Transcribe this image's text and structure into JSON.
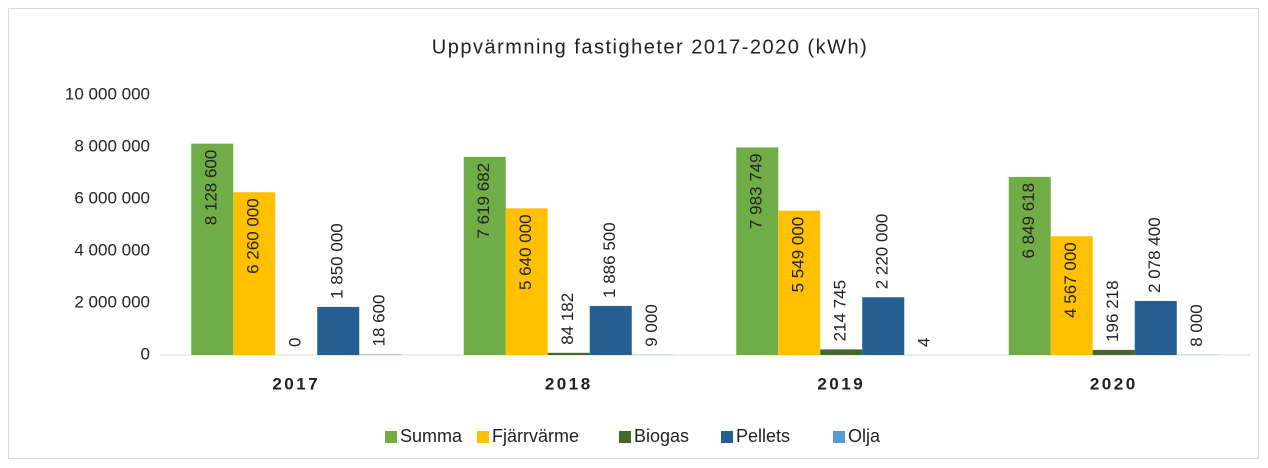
{
  "chart_data": {
    "type": "bar",
    "title": "Uppvärmning fastigheter 2017-2020 (kWh)",
    "categories": [
      "2017",
      "2018",
      "2019",
      "2020"
    ],
    "series": [
      {
        "name": "Summa",
        "color": "#70ad47",
        "values": [
          8128600,
          7619682,
          7983749,
          6849618
        ],
        "value_labels": [
          "8 128 600",
          "7 619 682",
          "7 983 749",
          "6 849 618"
        ]
      },
      {
        "name": "Fjärrvärme",
        "color": "#ffc000",
        "values": [
          6260000,
          5640000,
          5549000,
          4567000
        ],
        "value_labels": [
          "6 260 000",
          "5 640 000",
          "5 549 000",
          "4 567 000"
        ]
      },
      {
        "name": "Biogas",
        "color": "#43682b",
        "values": [
          0,
          84182,
          214745,
          196218
        ],
        "value_labels": [
          "0",
          "84 182",
          "214 745",
          "196 218"
        ]
      },
      {
        "name": "Pellets",
        "color": "#255e91",
        "values": [
          1850000,
          1886500,
          2220000,
          2078400
        ],
        "value_labels": [
          "1 850 000",
          "1 886 500",
          "2 220 000",
          "2 078 400"
        ]
      },
      {
        "name": "Olja",
        "color": "#5b9bd5",
        "values": [
          18600,
          9000,
          4,
          8000
        ],
        "value_labels": [
          "18 600",
          "9 000",
          "4",
          "8 000"
        ]
      }
    ],
    "ylim": [
      0,
      10000000
    ],
    "yticks": [
      0,
      {
        "value": 2000000,
        "label": "2 000 000"
      },
      {
        "value": 4000000,
        "label": "4 000 000"
      },
      {
        "value": 6000000,
        "label": "6 000 000"
      },
      {
        "value": 8000000,
        "label": "8 000 000"
      },
      {
        "value": 10000000,
        "label": "10 000 000"
      }
    ],
    "grid": false,
    "legend": "bottom"
  }
}
